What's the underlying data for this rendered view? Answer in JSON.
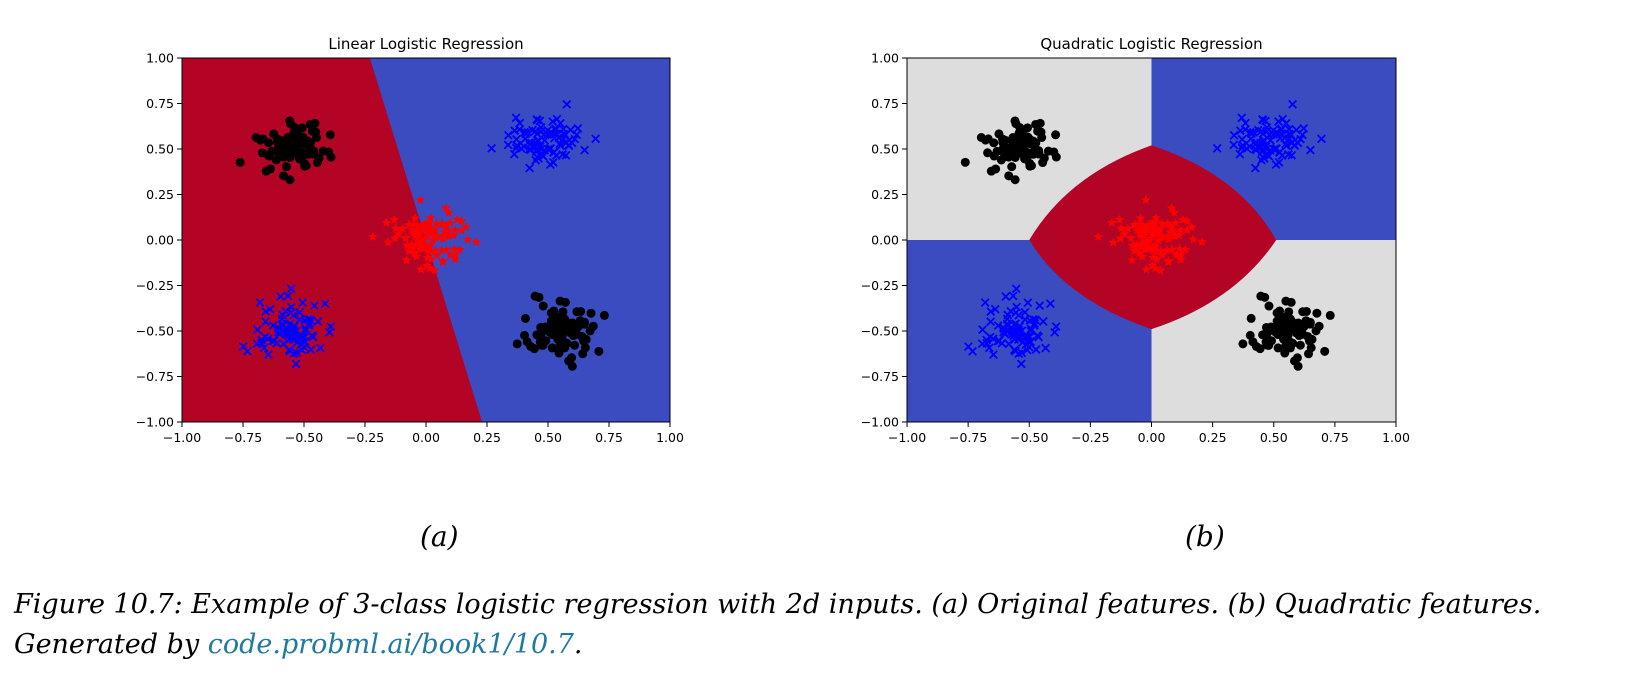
{
  "chart_data": [
    {
      "type": "scatter",
      "title": "Linear Logistic Regression",
      "xlim": [
        -1.0,
        1.0
      ],
      "ylim": [
        -1.0,
        1.0
      ],
      "xticks": [
        "−1.00",
        "−0.75",
        "−0.50",
        "−0.25",
        "0.00",
        "0.25",
        "0.50",
        "0.75",
        "1.00"
      ],
      "yticks": [
        "−1.00",
        "−0.75",
        "−0.50",
        "−0.25",
        "0.00",
        "0.25",
        "0.50",
        "0.75",
        "1.00"
      ],
      "decision_regions": "linear",
      "clusters": [
        {
          "class": "black",
          "marker": "circle",
          "center": [
            -0.55,
            0.5
          ],
          "spread": 0.07,
          "count": 90
        },
        {
          "class": "black",
          "marker": "circle",
          "center": [
            0.55,
            -0.5
          ],
          "spread": 0.07,
          "count": 90
        },
        {
          "class": "blue",
          "marker": "x",
          "center": [
            0.5,
            0.55
          ],
          "spread": 0.08,
          "count": 90
        },
        {
          "class": "blue",
          "marker": "x",
          "center": [
            -0.55,
            -0.5
          ],
          "spread": 0.08,
          "count": 90
        },
        {
          "class": "red",
          "marker": "star",
          "center": [
            0.02,
            0.0
          ],
          "spread": 0.08,
          "count": 100
        }
      ]
    },
    {
      "type": "scatter",
      "title": "Quadratic Logistic Regression",
      "xlim": [
        -1.0,
        1.0
      ],
      "ylim": [
        -1.0,
        1.0
      ],
      "xticks": [
        "−1.00",
        "−0.75",
        "−0.50",
        "−0.25",
        "0.00",
        "0.25",
        "0.50",
        "0.75",
        "1.00"
      ],
      "yticks": [
        "−1.00",
        "−0.75",
        "−0.50",
        "−0.25",
        "0.00",
        "0.25",
        "0.50",
        "0.75",
        "1.00"
      ],
      "decision_regions": "quadratic",
      "clusters": [
        {
          "class": "black",
          "marker": "circle",
          "center": [
            -0.55,
            0.5
          ],
          "spread": 0.07,
          "count": 90
        },
        {
          "class": "black",
          "marker": "circle",
          "center": [
            0.55,
            -0.5
          ],
          "spread": 0.07,
          "count": 90
        },
        {
          "class": "blue",
          "marker": "x",
          "center": [
            0.5,
            0.55
          ],
          "spread": 0.08,
          "count": 90
        },
        {
          "class": "blue",
          "marker": "x",
          "center": [
            -0.55,
            -0.5
          ],
          "spread": 0.08,
          "count": 90
        },
        {
          "class": "red",
          "marker": "star",
          "center": [
            0.02,
            0.0
          ],
          "spread": 0.08,
          "count": 100
        }
      ]
    }
  ],
  "colors": {
    "red_region": "#b40426",
    "blue_region": "#3b4cc0",
    "gray_region": "#dddddd",
    "black_points": "#000000",
    "blue_points": "#0000ff",
    "red_points": "#ff0000"
  },
  "sublabels": {
    "a": "(a)",
    "b": "(b)"
  },
  "caption": {
    "text": "Figure 10.7: Example of 3-class logistic regression with 2d inputs. (a) Original features. (b) Quadratic features. Generated by ",
    "link": "code.probml.ai/book1/10.7",
    "end": "."
  }
}
